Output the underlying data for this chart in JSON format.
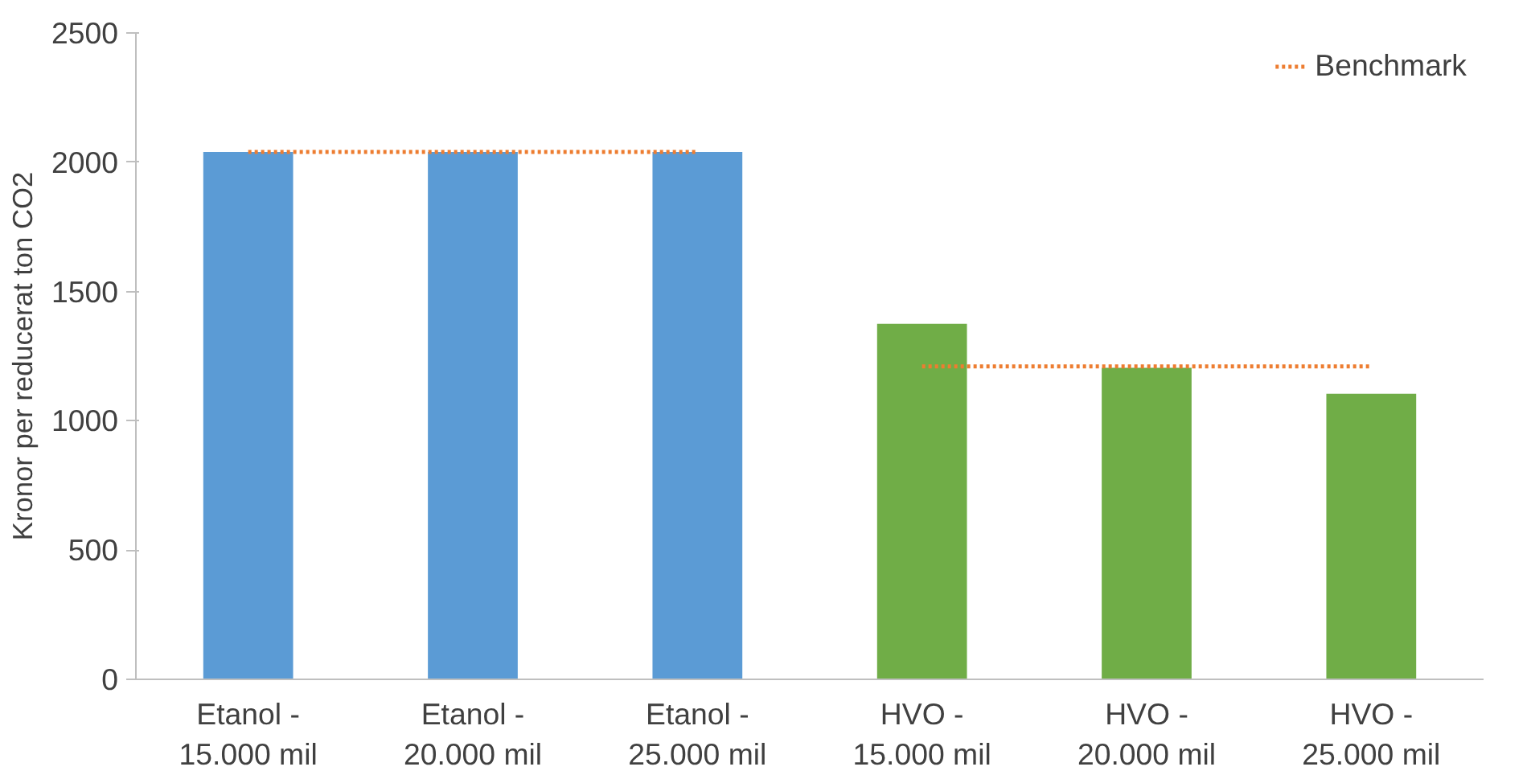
{
  "chart_data": {
    "type": "bar",
    "ylabel": "Kronor per reducerat ton CO2",
    "categories": [
      "Etanol -\n15.000 mil",
      "Etanol -\n20.000 mil",
      "Etanol -\n25.000 mil",
      "HVO -\n15.000 mil",
      "HVO -\n20.000 mil",
      "HVO -\n25.000 mil"
    ],
    "series": [
      {
        "colors": [
          "#5b9bd5",
          "#5b9bd5",
          "#5b9bd5",
          "#70ad47",
          "#70ad47",
          "#70ad47"
        ],
        "values": [
          2040,
          2040,
          2040,
          1375,
          1205,
          1105
        ]
      },
      {
        "type": "line",
        "name": "Benchmark",
        "color": "#ed7d31",
        "line_style": "dotted",
        "values": [
          2040,
          2040,
          2040,
          null,
          null,
          null
        ]
      },
      {
        "type": "line",
        "color": "#ed7d31",
        "line_style": "dotted",
        "values": [
          null,
          null,
          null,
          1210,
          1210,
          1210
        ]
      }
    ],
    "ylim": [
      0,
      2500
    ],
    "yticks": [
      0,
      500,
      1000,
      1500,
      2000,
      2500
    ],
    "grid": false,
    "legend": "top right"
  }
}
